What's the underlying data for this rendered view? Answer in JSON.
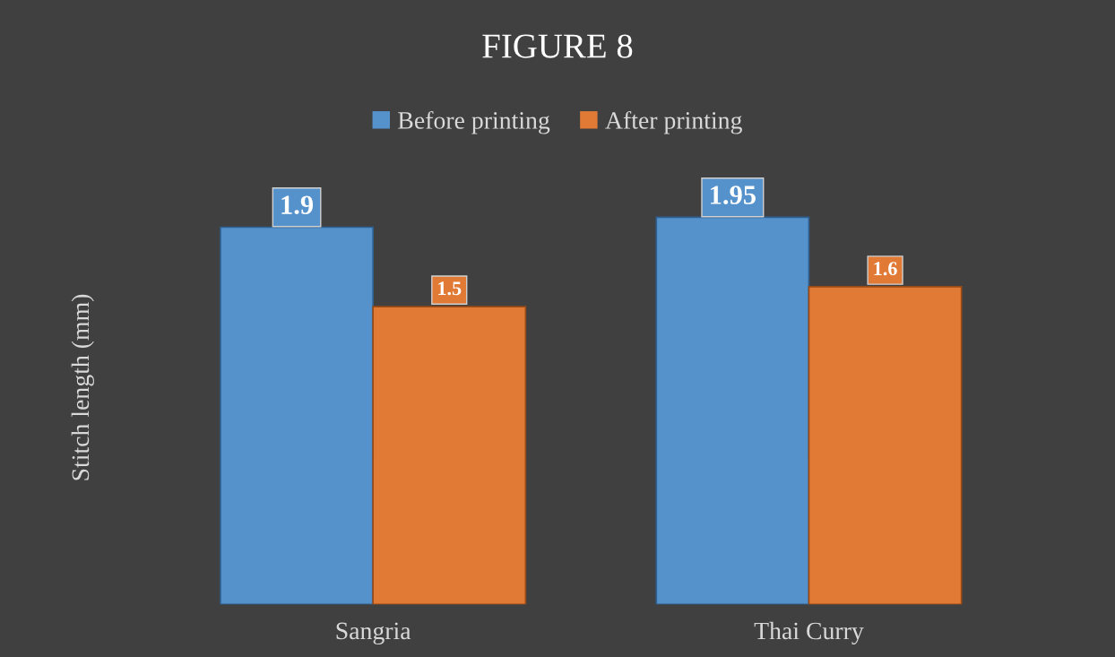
{
  "chart_data": {
    "type": "bar",
    "title": "FIGURE 8",
    "ylabel": "Stitch length (mm)",
    "categories": [
      "Sangria",
      "Thai Curry"
    ],
    "series": [
      {
        "name": "Before printing",
        "color": "#5592cc",
        "values": [
          1.9,
          1.95
        ]
      },
      {
        "name": "After printing",
        "color": "#e07a35",
        "values": [
          1.5,
          1.6
        ]
      }
    ],
    "data_labels": true,
    "legend": "top",
    "grid": false
  }
}
